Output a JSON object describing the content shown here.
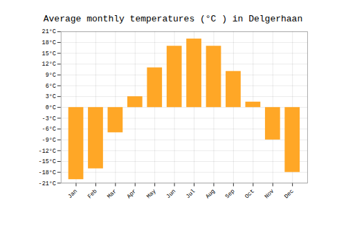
{
  "chart_data": {
    "type": "bar",
    "title": "Average monthly temperatures (°C ) in Delgerhaan",
    "categories": [
      "Jan",
      "Feb",
      "Mar",
      "Apr",
      "May",
      "Jun",
      "Jul",
      "Aug",
      "Sep",
      "Oct",
      "Nov",
      "Dec"
    ],
    "values": [
      -20,
      -17,
      -7,
      3,
      11,
      17,
      19,
      17,
      10,
      1.5,
      -9,
      -18
    ],
    "color": "#FFA726",
    "ylim": [
      -21,
      21
    ],
    "yticks": [
      {
        "value": -21,
        "label": "-21°C"
      },
      {
        "value": -18,
        "label": "-18°C"
      },
      {
        "value": -15,
        "label": "-15°C"
      },
      {
        "value": -12,
        "label": "-12°C"
      },
      {
        "value": -9,
        "label": "-9°C"
      },
      {
        "value": -6,
        "label": "-6°C"
      },
      {
        "value": -3,
        "label": "-3°C"
      },
      {
        "value": 0,
        "label": "0°C"
      },
      {
        "value": 3,
        "label": "3°C"
      },
      {
        "value": 6,
        "label": "6°C"
      },
      {
        "value": 9,
        "label": "9°C"
      },
      {
        "value": 12,
        "label": "12°C"
      },
      {
        "value": 15,
        "label": "15°C"
      },
      {
        "value": 18,
        "label": "18°C"
      },
      {
        "value": 21,
        "label": "21°C"
      }
    ],
    "grid": true
  }
}
